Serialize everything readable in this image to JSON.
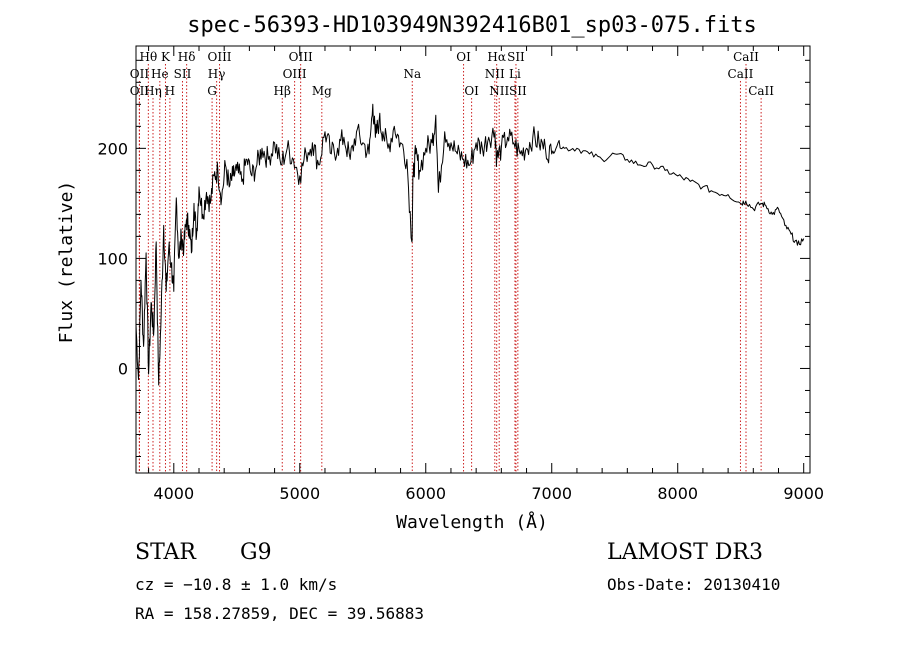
{
  "chart_data": {
    "type": "line",
    "title": "spec-56393-HD103949N392416B01_sp03-075.fits",
    "xlabel": "Wavelength (Å)",
    "ylabel": "Flux (relative)",
    "xlim": [
      3700,
      9050
    ],
    "ylim": [
      -95,
      293
    ],
    "x_ticks": [
      4000,
      5000,
      6000,
      7000,
      8000,
      9000
    ],
    "x_tick_labels": [
      "4000",
      "5000",
      "6000",
      "7000",
      "8000",
      "9000"
    ],
    "y_ticks": [
      0,
      100,
      200
    ],
    "y_tick_labels": [
      "0",
      "100",
      "200"
    ],
    "grid": false,
    "line_color": "#000000",
    "marker_color": "#cc2222",
    "series": [
      {
        "x": [
          3700,
          3720,
          3740,
          3760,
          3780,
          3800,
          3820,
          3840,
          3860,
          3880,
          3900,
          3920,
          3940,
          3960,
          3980,
          4000,
          4020,
          4040,
          4060,
          4080,
          4100,
          4120,
          4140,
          4160,
          4180,
          4200,
          4230,
          4260,
          4290,
          4320,
          4350,
          4380,
          4410,
          4440,
          4470,
          4500,
          4540,
          4580,
          4620,
          4660,
          4700,
          4750,
          4800,
          4850,
          4900,
          4950,
          5000,
          5050,
          5100,
          5150,
          5200,
          5250,
          5300,
          5350,
          5400,
          5450,
          5500,
          5550,
          5580,
          5600,
          5630,
          5660,
          5700,
          5750,
          5800,
          5850,
          5890,
          5900,
          5920,
          5950,
          6000,
          6050,
          6080,
          6100,
          6150,
          6200,
          6250,
          6300,
          6350,
          6400,
          6450,
          6500,
          6550,
          6563,
          6600,
          6650,
          6700,
          6750,
          6800,
          6850,
          6900,
          6950,
          7000,
          7050,
          7100,
          7200,
          7300,
          7400,
          7500,
          7600,
          7700,
          7800,
          7900,
          8000,
          8100,
          8200,
          8300,
          8400,
          8500,
          8540,
          8600,
          8660,
          8700,
          8750,
          8800,
          8850,
          8900,
          8950,
          9000
        ],
        "y": [
          40,
          -10,
          80,
          20,
          105,
          -5,
          60,
          30,
          115,
          -15,
          50,
          130,
          70,
          110,
          95,
          70,
          155,
          100,
          120,
          110,
          135,
          130,
          105,
          150,
          120,
          165,
          140,
          160,
          150,
          175,
          180,
          155,
          185,
          165,
          175,
          180,
          170,
          190,
          175,
          185,
          200,
          190,
          205,
          185,
          200,
          190,
          175,
          195,
          205,
          185,
          215,
          195,
          200,
          210,
          190,
          215,
          205,
          195,
          240,
          210,
          225,
          215,
          200,
          220,
          205,
          190,
          115,
          175,
          195,
          180,
          200,
          205,
          230,
          160,
          215,
          205,
          195,
          190,
          185,
          205,
          200,
          210,
          215,
          190,
          200,
          210,
          205,
          195,
          200,
          210,
          205,
          200,
          195,
          205,
          200,
          200,
          195,
          190,
          195,
          190,
          185,
          185,
          180,
          175,
          170,
          165,
          160,
          158,
          150,
          152,
          145,
          150,
          148,
          140,
          145,
          130,
          122,
          112,
          118
        ]
      }
    ],
    "lines": [
      {
        "label": "Hθ",
        "x": 3798,
        "row": 1
      },
      {
        "label": "OII",
        "x": 3727,
        "row": 2
      },
      {
        "label": "OII",
        "x": 3727,
        "row": 3
      },
      {
        "label": "K",
        "x": 3934,
        "row": 1
      },
      {
        "label": "He",
        "x": 3889,
        "row": 2
      },
      {
        "label": "Hη",
        "x": 3835,
        "row": 3
      },
      {
        "label": "Hδ",
        "x": 4102,
        "row": 1
      },
      {
        "label": "SII",
        "x": 4069,
        "row": 2
      },
      {
        "label": "H",
        "x": 3969,
        "row": 3
      },
      {
        "label": "OIII",
        "x": 4363,
        "row": 1
      },
      {
        "label": "Hγ",
        "x": 4340,
        "row": 2
      },
      {
        "label": "G",
        "x": 4304,
        "row": 3
      },
      {
        "label": "OIII",
        "x": 5007,
        "row": 1
      },
      {
        "label": "OIII",
        "x": 4959,
        "row": 2
      },
      {
        "label": "Hβ",
        "x": 4861,
        "row": 3
      },
      {
        "label": "Mg",
        "x": 5175,
        "row": 3
      },
      {
        "label": "Na",
        "x": 5893,
        "row": 2
      },
      {
        "label": "OI",
        "x": 6300,
        "row": 1
      },
      {
        "label": "OI",
        "x": 6364,
        "row": 3
      },
      {
        "label": "Hα",
        "x": 6563,
        "row": 1
      },
      {
        "label": "NII",
        "x": 6548,
        "row": 2
      },
      {
        "label": "NII",
        "x": 6583,
        "row": 3
      },
      {
        "label": "SII",
        "x": 6716,
        "row": 1
      },
      {
        "label": "Li",
        "x": 6708,
        "row": 2
      },
      {
        "label": "SII",
        "x": 6731,
        "row": 3
      },
      {
        "label": "CaII",
        "x": 8542,
        "row": 1
      },
      {
        "label": "CaII",
        "x": 8498,
        "row": 2
      },
      {
        "label": "CaII",
        "x": 8662,
        "row": 3
      }
    ]
  },
  "info": {
    "object_type": "STAR",
    "subclass": "G9",
    "survey": "LAMOST DR3",
    "cz": "cz = −10.8 ± 1.0 km/s",
    "obs_date": "Obs-Date: 20130410",
    "coords": "RA = 158.27859, DEC =  39.56883"
  }
}
